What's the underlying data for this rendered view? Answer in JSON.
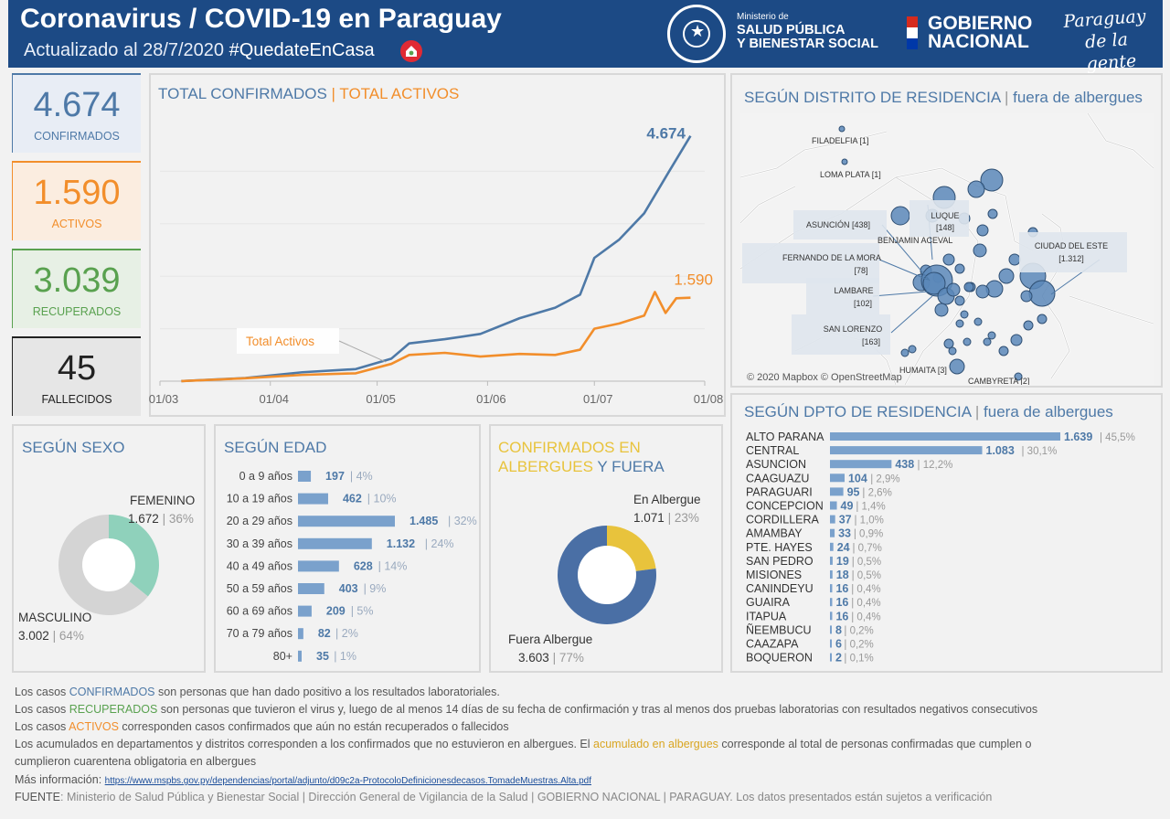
{
  "header": {
    "title": "Coronavirus / COVID-19 en Paraguay",
    "updated": "Actualizado al 28/7/2020",
    "hashtag": "#QuedateEnCasa",
    "ministerio_small": "Ministerio de",
    "ministerio_line1": "SALUD PÚBLICA",
    "ministerio_line2": "Y BIENESTAR SOCIAL",
    "gobierno_line1": "GOBIERNO",
    "gobierno_line2": "NACIONAL",
    "slogan_line1": "Paraguay",
    "slogan_line2": "de la gente"
  },
  "kpis": {
    "confirmados": {
      "value": "4.674",
      "label": "CONFIRMADOS",
      "color": "#4e79a7"
    },
    "activos": {
      "value": "1.590",
      "label": "ACTIVOS",
      "color": "#f28e2b"
    },
    "recuperados": {
      "value": "3.039",
      "label": "RECUPERADOS",
      "color": "#59a14f"
    },
    "fallecidos": {
      "value": "45",
      "label": "FALLECIDOS",
      "color": "#222222"
    }
  },
  "timeline": {
    "title_confirmados": "TOTAL CONFIRMADOS",
    "separator": " | ",
    "title_activos": "TOTAL ACTIVOS",
    "annotation": "Total Activos",
    "label_confirmados": "4.674",
    "label_activos": "1.590"
  },
  "chart_data": [
    {
      "type": "line",
      "x_ticks": [
        "01/03",
        "01/04",
        "01/05",
        "01/06",
        "01/07",
        "01/08"
      ],
      "series": [
        {
          "name": "TOTAL CONFIRMADOS",
          "color": "#4e79a7",
          "x": [
            "2020-03-07",
            "2020-03-25",
            "2020-04-10",
            "2020-04-25",
            "2020-05-05",
            "2020-05-10",
            "2020-05-20",
            "2020-05-30",
            "2020-06-10",
            "2020-06-20",
            "2020-06-27",
            "2020-07-01",
            "2020-07-08",
            "2020-07-15",
            "2020-07-22",
            "2020-07-28"
          ],
          "y": [
            1,
            60,
            170,
            230,
            430,
            720,
            800,
            900,
            1200,
            1400,
            1650,
            2350,
            2700,
            3200,
            4000,
            4674
          ]
        },
        {
          "name": "TOTAL ACTIVOS",
          "color": "#f28e2b",
          "x": [
            "2020-03-07",
            "2020-03-25",
            "2020-04-10",
            "2020-04-25",
            "2020-05-05",
            "2020-05-10",
            "2020-05-20",
            "2020-05-30",
            "2020-06-10",
            "2020-06-20",
            "2020-06-27",
            "2020-07-01",
            "2020-07-08",
            "2020-07-15",
            "2020-07-18",
            "2020-07-21",
            "2020-07-24",
            "2020-07-28"
          ],
          "y": [
            1,
            55,
            120,
            150,
            330,
            500,
            540,
            470,
            520,
            500,
            600,
            1000,
            1100,
            1250,
            1700,
            1300,
            1580,
            1590
          ]
        }
      ]
    },
    {
      "type": "pie",
      "title": "SEGÚN SEXO",
      "slices": [
        {
          "label": "FEMENINO",
          "value": 1672,
          "pct": "36%",
          "color": "#8fd1bb"
        },
        {
          "label": "MASCULINO",
          "value": 3002,
          "pct": "64%",
          "color": "#d4d4d4"
        }
      ]
    },
    {
      "type": "bar",
      "title": "SEGÚN EDAD",
      "categories": [
        "0 a 9 años",
        "10 a 19 años",
        "20 a 29 años",
        "30 a 39 años",
        "40 a 49 años",
        "50 a 59 años",
        "60 a 69 años",
        "70 a 79 años",
        "80+"
      ],
      "values": [
        197,
        462,
        1485,
        1132,
        628,
        403,
        209,
        82,
        35
      ],
      "value_labels": [
        "197",
        "462",
        "1.485",
        "1.132",
        "628",
        "403",
        "209",
        "82",
        "35"
      ],
      "pct": [
        "4%",
        "10%",
        "32%",
        "24%",
        "14%",
        "9%",
        "5%",
        "2%",
        "1%"
      ]
    },
    {
      "type": "pie",
      "title": "CONFIRMADOS EN ALBERGUES Y FUERA",
      "slices": [
        {
          "label": "En Albergue",
          "value": 1071,
          "pct": "23%",
          "color": "#e8c33c"
        },
        {
          "label": "Fuera Albergue",
          "value": 3603,
          "pct": "77%",
          "color": "#4a6fa5"
        }
      ]
    },
    {
      "type": "bar",
      "title": "SEGÚN DPTO DE RESIDENCIA | fuera de albergues",
      "categories": [
        "ALTO PARANA",
        "CENTRAL",
        "ASUNCION",
        "CAAGUAZU",
        "PARAGUARI",
        "CONCEPCION",
        "CORDILLERA",
        "AMAMBAY",
        "PTE. HAYES",
        "SAN PEDRO",
        "MISIONES",
        "CANINDEYU",
        "GUAIRA",
        "ITAPUA",
        "ÑEEMBUCU",
        "CAAZAPA",
        "BOQUERON"
      ],
      "values": [
        1639,
        1083,
        438,
        104,
        95,
        49,
        37,
        33,
        24,
        19,
        18,
        16,
        16,
        16,
        8,
        6,
        2
      ],
      "value_labels": [
        "1.639",
        "1.083",
        "438",
        "104",
        "95",
        "49",
        "37",
        "33",
        "24",
        "19",
        "18",
        "16",
        "16",
        "16",
        "8",
        "6",
        "2"
      ],
      "pct": [
        "45,5%",
        "30,1%",
        "12,2%",
        "2,9%",
        "2,6%",
        "1,4%",
        "1,0%",
        "0,9%",
        "0,7%",
        "0,5%",
        "0,5%",
        "0,4%",
        "0,4%",
        "0,4%",
        "0,2%",
        "0,2%",
        "0,1%"
      ]
    }
  ],
  "sexo": {
    "title": "SEGÚN SEXO",
    "fem_label": "FEMENINO",
    "fem_value": "1.672",
    "fem_pct": "36%",
    "masc_label": "MASCULINO",
    "masc_value": "3.002",
    "masc_pct": "64%"
  },
  "edad": {
    "title": "SEGÚN EDAD"
  },
  "albergue": {
    "title_part1": "CONFIRMADOS EN",
    "title_part2": "ALBERGUES",
    "title_part3": " Y FUERA",
    "en_label": "En Albergue",
    "en_value": "1.071",
    "en_pct": "23%",
    "fuera_label": "Fuera Albergue",
    "fuera_value": "3.603",
    "fuera_pct": "77%"
  },
  "map": {
    "title_main": "SEGÚN DISTRITO DE RESIDENCIA",
    "title_sub": "fuera de albergues",
    "credit": "© 2020 Mapbox © OpenStreetMap",
    "labels": {
      "filadelfia": "FILADELFIA [1]",
      "loma_plata": "LOMA PLATA [1]",
      "asuncion": "ASUNCIÓN [438]",
      "luque_name": "LUQUE",
      "luque_value": "[148]",
      "benjamin": "BENJAMIN ACEVAL",
      "ciudad_este_name": "CIUDAD DEL ESTE",
      "ciudad_este_value": "[1.312]",
      "fernando_name": "FERNANDO DE LA MORA",
      "fernando_value": "[78]",
      "lambare_name": "LAMBARE",
      "lambare_value": "[102]",
      "san_lorenzo_name": "SAN LORENZO",
      "san_lorenzo_value": "[163]",
      "humaita": "HUMAITA [3]",
      "cambyreta": "CAMBYRETA [2]"
    }
  },
  "dpto": {
    "title_main": "SEGÚN DPTO DE RESIDENCIA",
    "title_sub": "fuera de albergues"
  },
  "footer": {
    "l1_a": "Los casos ",
    "l1_b": "CONFIRMADOS",
    "l1_c": " son personas que han dado positivo a los resultados laboratoriales.",
    "l2_a": "Los casos ",
    "l2_b": "RECUPERADOS",
    "l2_c": " son personas que tuvieron el virus y, luego de al menos 14 días de su fecha de confirmación y tras al menos dos pruebas laboratorias con resultados negativos consecutivos",
    "l3_a": "Los casos ",
    "l3_b": "ACTIVOS",
    "l3_c": " corresponden casos confirmados que aún no están recuperados o fallecidos",
    "l4_a": "Los acumulados en departamentos y distritos corresponden a los confirmados que no estuvieron en albergues. El ",
    "l4_b": "acumulado en albergues",
    "l4_c": " corresponde al total de personas confirmadas que cumplen o",
    "l5": "cumplieron cuarentena obligatoria en albergues",
    "l6_a": "Más información: ",
    "l6_link": "https://www.mspbs.gov.py/dependencias/portal/adjunto/d09c2a-ProtocoloDefinicionesdecasos.TomadeMuestras.Alta.pdf",
    "l7_a": "FUENTE",
    "l7_b": ": Ministerio de Salud Pública y Bienestar Social | Dirección General de Vigilancia de la Salud | GOBIERNO NACIONAL | PARAGUAY. Los datos presentados están sujetos a verificación"
  }
}
